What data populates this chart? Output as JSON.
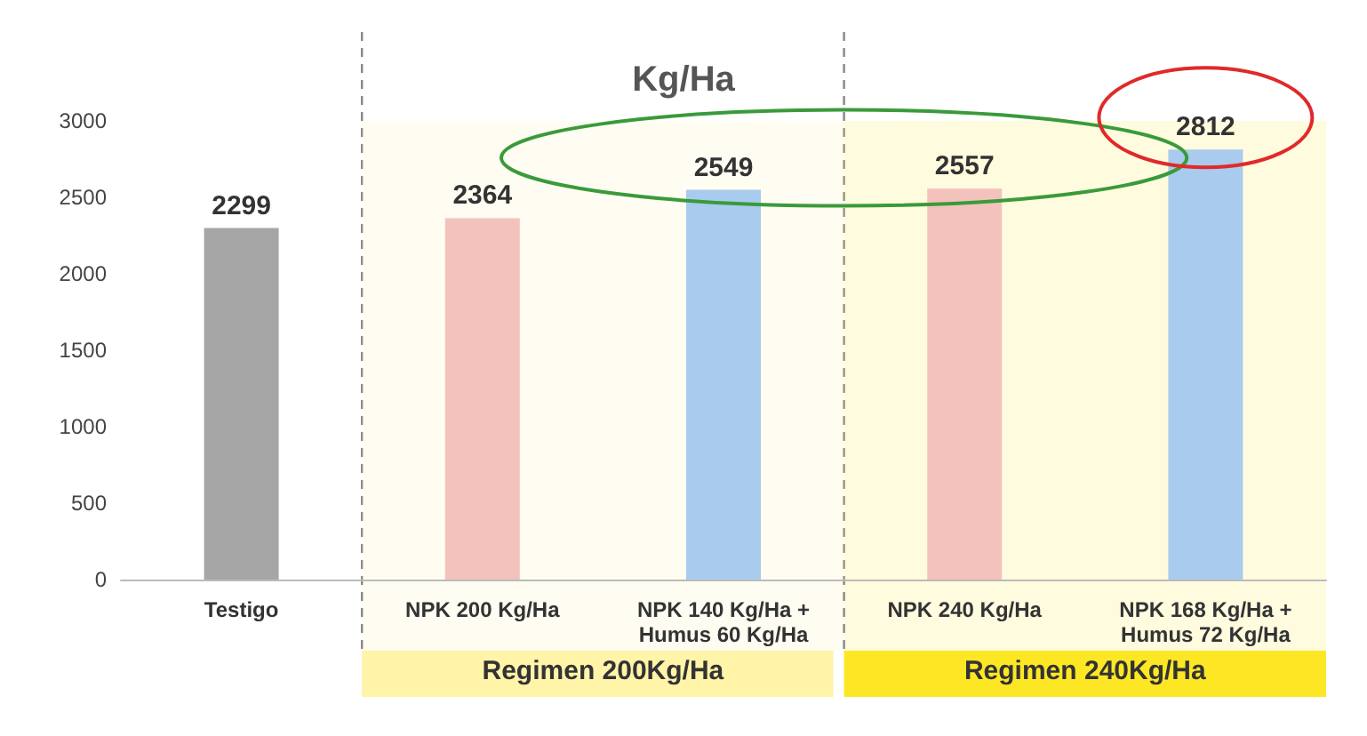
{
  "chart_data": {
    "type": "bar",
    "title": "Kg/Ha",
    "categories": [
      "Testigo",
      "NPK 200 Kg/Ha",
      "NPK 140 Kg/Ha +\nHumus 60 Kg/Ha",
      "NPK 240 Kg/Ha",
      "NPK 168 Kg/Ha +\nHumus 72 Kg/Ha"
    ],
    "values": [
      2299,
      2364,
      2549,
      2557,
      2812
    ],
    "colors": [
      "#a6a6a6",
      "#f4c2bd",
      "#a9cbed",
      "#f4c2bd",
      "#a9cbed"
    ],
    "ylim": [
      0,
      3000
    ],
    "yticks": [
      0,
      500,
      1000,
      1500,
      2000,
      2500,
      3000
    ],
    "data_labels": true,
    "grid": false,
    "bands": [
      {
        "axis": "x",
        "from": "NPK 200 Kg/Ha",
        "to": "NPK 140 Kg/Ha +\nHumus 60 Kg/Ha",
        "label": "Regimen 200Kg/Ha",
        "color": "#fff4a8"
      },
      {
        "axis": "x",
        "from": "NPK 240 Kg/Ha",
        "to": "NPK 168 Kg/Ha +\nHumus 72 Kg/Ha",
        "label": "Regimen 240Kg/Ha",
        "color": "#fde725"
      }
    ]
  }
}
